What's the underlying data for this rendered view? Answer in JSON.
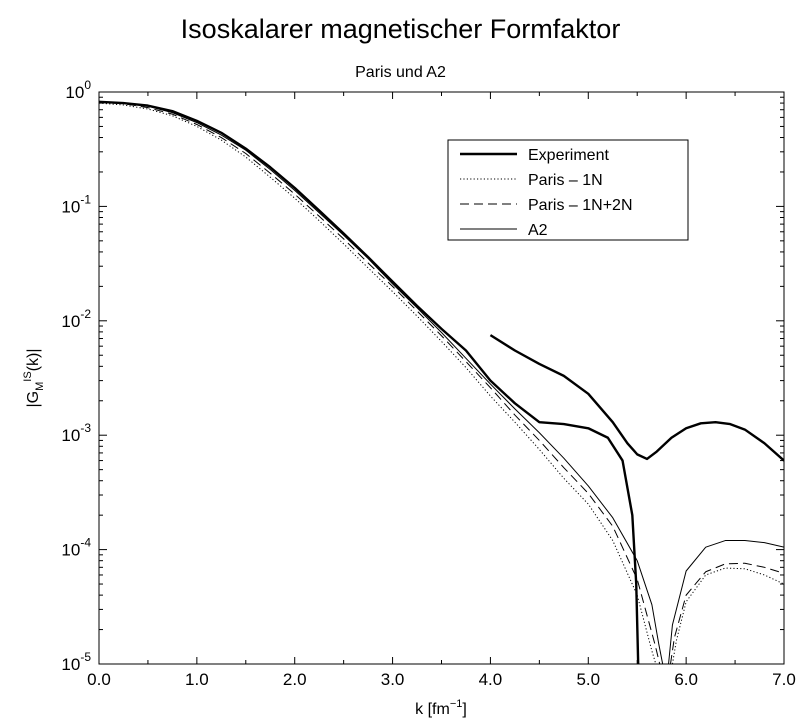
{
  "chart_data": {
    "type": "line",
    "title": "Isoskalarer magnetischer Formfaktor",
    "subtitle": "Paris und A2",
    "xlabel": "k [fm",
    "xlabel_sup": "−1",
    "xlabel_end": "]",
    "ylabel": "|G",
    "ylabel_sub": "M",
    "ylabel_sup": "IS",
    "ylabel_end": "(k)|",
    "xlim": [
      0,
      7
    ],
    "ylim": [
      1e-05,
      1
    ],
    "y_scale": "log",
    "grid": false,
    "legend_position": "top-right",
    "x_ticks": [
      0,
      1,
      2,
      3,
      4,
      5,
      6,
      7
    ],
    "x_tick_labels": [
      "0.0",
      "1.0",
      "2.0",
      "3.0",
      "4.0",
      "5.0",
      "6.0",
      "7.0"
    ],
    "y_ticks": [
      {
        "value": 1,
        "base": "10",
        "exp": "0"
      },
      {
        "value": 0.1,
        "base": "10",
        "exp": "-1"
      },
      {
        "value": 0.01,
        "base": "10",
        "exp": "-2"
      },
      {
        "value": 0.001,
        "base": "10",
        "exp": "-3"
      },
      {
        "value": 0.0001,
        "base": "10",
        "exp": "-4"
      },
      {
        "value": 1e-05,
        "base": "10",
        "exp": "-5"
      }
    ],
    "series": [
      {
        "name": "Experiment",
        "style": "thick",
        "points": [
          [
            0.0,
            0.82
          ],
          [
            0.25,
            0.8
          ],
          [
            0.5,
            0.76
          ],
          [
            0.75,
            0.68
          ],
          [
            1.0,
            0.56
          ],
          [
            1.25,
            0.44
          ],
          [
            1.5,
            0.32
          ],
          [
            1.75,
            0.22
          ],
          [
            2.0,
            0.145
          ],
          [
            2.25,
            0.092
          ],
          [
            2.5,
            0.058
          ],
          [
            2.75,
            0.036
          ],
          [
            3.0,
            0.022
          ],
          [
            3.25,
            0.0135
          ],
          [
            3.5,
            0.0085
          ],
          [
            3.75,
            0.0055
          ],
          [
            4.0,
            0.003
          ],
          [
            4.25,
            0.0019
          ],
          [
            4.5,
            0.0013
          ],
          [
            4.75,
            0.00125
          ],
          [
            5.0,
            0.00115
          ],
          [
            5.2,
            0.00095
          ],
          [
            5.35,
            0.0006
          ],
          [
            5.45,
            0.0002
          ],
          [
            5.49,
            5e-05
          ],
          [
            5.51,
            1e-05
          ]
        ]
      },
      {
        "name": "Experiment",
        "style": "thick",
        "points": [
          [
            4.0,
            0.0075
          ],
          [
            4.25,
            0.0055
          ],
          [
            4.5,
            0.0042
          ],
          [
            4.75,
            0.0033
          ],
          [
            5.0,
            0.0023
          ],
          [
            5.25,
            0.0013
          ],
          [
            5.4,
            0.00085
          ],
          [
            5.5,
            0.00068
          ],
          [
            5.6,
            0.00062
          ],
          [
            5.7,
            0.00072
          ],
          [
            5.85,
            0.00095
          ],
          [
            6.0,
            0.00115
          ],
          [
            6.15,
            0.00127
          ],
          [
            6.3,
            0.0013
          ],
          [
            6.45,
            0.00125
          ],
          [
            6.6,
            0.00112
          ],
          [
            6.8,
            0.00085
          ],
          [
            7.0,
            0.0006
          ]
        ]
      },
      {
        "name": "Paris – 1N",
        "style": "dotted",
        "points": [
          [
            0.0,
            0.8
          ],
          [
            0.25,
            0.77
          ],
          [
            0.5,
            0.71
          ],
          [
            0.75,
            0.62
          ],
          [
            1.0,
            0.5
          ],
          [
            1.25,
            0.38
          ],
          [
            1.5,
            0.27
          ],
          [
            1.75,
            0.18
          ],
          [
            2.0,
            0.118
          ],
          [
            2.25,
            0.075
          ],
          [
            2.5,
            0.047
          ],
          [
            2.75,
            0.029
          ],
          [
            3.0,
            0.018
          ],
          [
            3.25,
            0.011
          ],
          [
            3.5,
            0.0066
          ],
          [
            3.75,
            0.0039
          ],
          [
            4.0,
            0.0022
          ],
          [
            4.25,
            0.0013
          ],
          [
            4.5,
            0.00075
          ],
          [
            4.75,
            0.00042
          ],
          [
            5.0,
            0.00025
          ],
          [
            5.25,
            0.00012
          ],
          [
            5.5,
            4e-05
          ],
          [
            5.65,
            1.3e-05
          ],
          [
            5.69,
            1e-05
          ]
        ]
      },
      {
        "name": "Paris – 1N",
        "style": "dotted",
        "points": [
          [
            5.86,
            1e-05
          ],
          [
            5.9,
            1.6e-05
          ],
          [
            6.0,
            3.5e-05
          ],
          [
            6.2,
            6e-05
          ],
          [
            6.4,
            6.9e-05
          ],
          [
            6.6,
            6.8e-05
          ],
          [
            6.8,
            6e-05
          ],
          [
            7.0,
            5e-05
          ]
        ]
      },
      {
        "name": "Paris – 1N+2N",
        "style": "dashed",
        "points": [
          [
            0.0,
            0.81
          ],
          [
            0.25,
            0.79
          ],
          [
            0.5,
            0.73
          ],
          [
            0.75,
            0.64
          ],
          [
            1.0,
            0.52
          ],
          [
            1.25,
            0.4
          ],
          [
            1.5,
            0.29
          ],
          [
            1.75,
            0.195
          ],
          [
            2.0,
            0.128
          ],
          [
            2.25,
            0.082
          ],
          [
            2.5,
            0.052
          ],
          [
            2.75,
            0.032
          ],
          [
            3.0,
            0.02
          ],
          [
            3.25,
            0.0122
          ],
          [
            3.5,
            0.0074
          ],
          [
            3.75,
            0.0044
          ],
          [
            4.0,
            0.0026
          ],
          [
            4.25,
            0.0015
          ],
          [
            4.5,
            0.0009
          ],
          [
            4.75,
            0.00052
          ],
          [
            5.0,
            0.00031
          ],
          [
            5.25,
            0.00016
          ],
          [
            5.5,
            5.5e-05
          ],
          [
            5.68,
            1.5e-05
          ],
          [
            5.73,
            1e-05
          ]
        ]
      },
      {
        "name": "Paris – 1N+2N",
        "style": "dashed",
        "points": [
          [
            5.84,
            1e-05
          ],
          [
            5.88,
            1.7e-05
          ],
          [
            6.0,
            4e-05
          ],
          [
            6.2,
            6.4e-05
          ],
          [
            6.4,
            7.5e-05
          ],
          [
            6.6,
            7.6e-05
          ],
          [
            6.8,
            7e-05
          ],
          [
            7.0,
            6.2e-05
          ]
        ]
      },
      {
        "name": "A2",
        "style": "thin",
        "points": [
          [
            0.0,
            0.82
          ],
          [
            0.25,
            0.8
          ],
          [
            0.5,
            0.75
          ],
          [
            0.75,
            0.66
          ],
          [
            1.0,
            0.54
          ],
          [
            1.25,
            0.42
          ],
          [
            1.5,
            0.31
          ],
          [
            1.75,
            0.21
          ],
          [
            2.0,
            0.138
          ],
          [
            2.25,
            0.088
          ],
          [
            2.5,
            0.056
          ],
          [
            2.75,
            0.035
          ],
          [
            3.0,
            0.021
          ],
          [
            3.25,
            0.013
          ],
          [
            3.5,
            0.0079
          ],
          [
            3.75,
            0.0047
          ],
          [
            4.0,
            0.0028
          ],
          [
            4.25,
            0.0017
          ],
          [
            4.5,
            0.00105
          ],
          [
            4.75,
            0.00063
          ],
          [
            5.0,
            0.00036
          ],
          [
            5.25,
            0.00019
          ],
          [
            5.5,
            8e-05
          ],
          [
            5.65,
            3.3e-05
          ],
          [
            5.72,
            1.5e-05
          ],
          [
            5.76,
            1e-05
          ]
        ]
      },
      {
        "name": "A2",
        "style": "thin",
        "points": [
          [
            5.82,
            1e-05
          ],
          [
            5.86,
            2.2e-05
          ],
          [
            6.0,
            6.5e-05
          ],
          [
            6.2,
            0.000105
          ],
          [
            6.4,
            0.00012
          ],
          [
            6.6,
            0.00012
          ],
          [
            6.8,
            0.000115
          ],
          [
            7.0,
            0.000105
          ]
        ]
      }
    ],
    "legend": [
      {
        "label": "Experiment",
        "style": "thick"
      },
      {
        "label": "Paris – 1N",
        "style": "dotted"
      },
      {
        "label": "Paris – 1N+2N",
        "style": "dashed"
      },
      {
        "label": "A2",
        "style": "thin"
      }
    ]
  }
}
